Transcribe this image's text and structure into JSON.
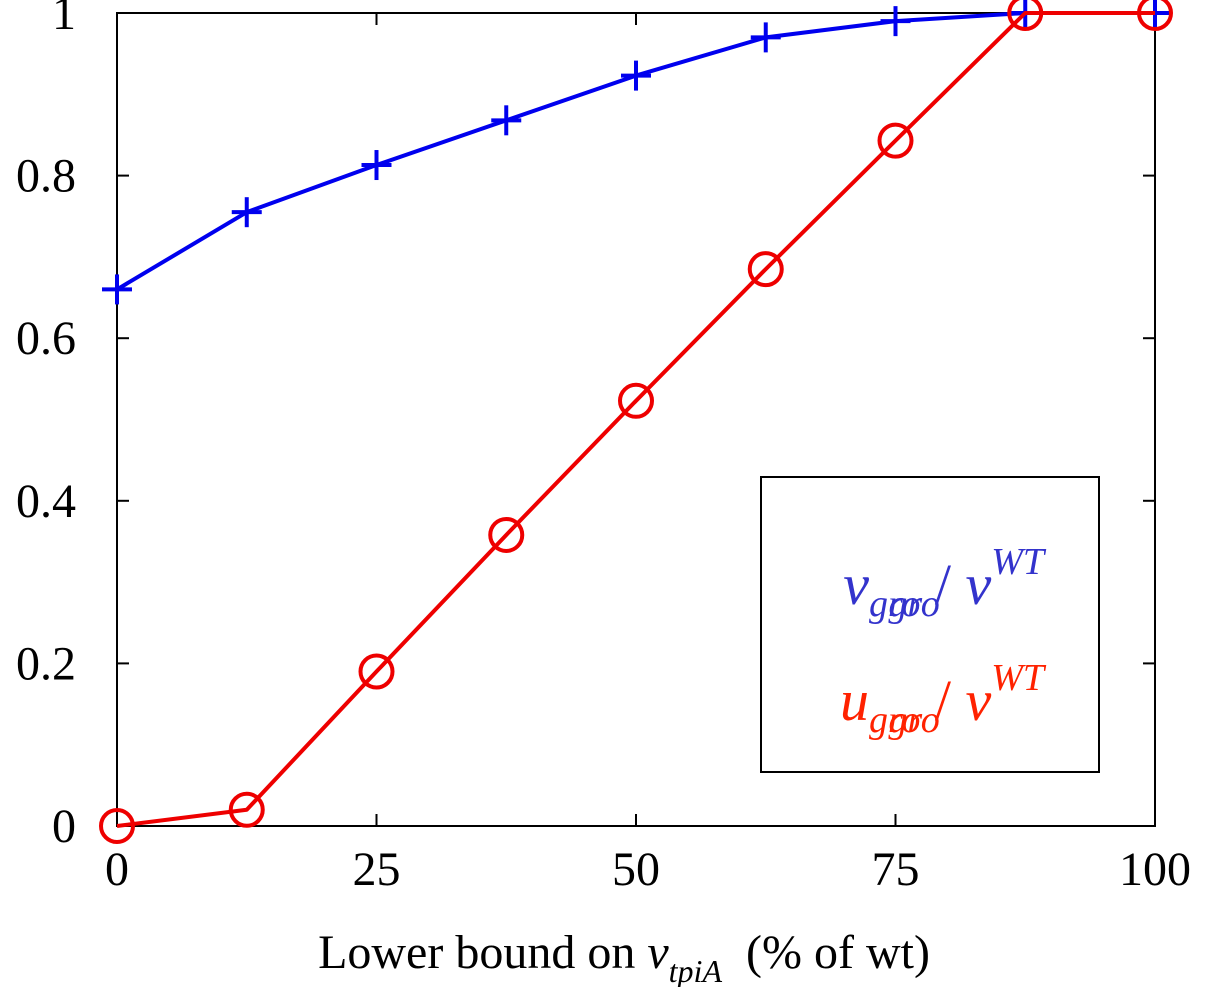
{
  "chart_data": {
    "type": "line",
    "x": [
      0,
      12.5,
      25,
      37.5,
      50,
      62.5,
      75,
      87.5,
      100
    ],
    "series": [
      {
        "name": "v_gro / v_gro^WT",
        "marker": "plus",
        "color": "#0000ee",
        "values": [
          0.66,
          0.755,
          0.813,
          0.868,
          0.923,
          0.97,
          0.99,
          1.0,
          1.0
        ]
      },
      {
        "name": "u_gro / v_gro^WT",
        "marker": "circle",
        "color": "#ee0000",
        "values": [
          0.0,
          0.02,
          0.19,
          0.358,
          0.523,
          0.685,
          0.843,
          1.0,
          1.0
        ]
      }
    ],
    "xlim": [
      0,
      100
    ],
    "ylim": [
      0,
      1.0
    ],
    "xticks": [
      "0",
      "25",
      "50",
      "75",
      "100"
    ],
    "xtick_values": [
      0,
      25,
      50,
      75,
      100
    ],
    "yticks": [
      "0",
      "0.2",
      "0.4",
      "0.6",
      "0.8",
      "1"
    ],
    "ytick_values": [
      0,
      0.2,
      0.4,
      0.6,
      0.8,
      1.0
    ],
    "xlabel": {
      "prefix": "Lower bound on ",
      "var": "v",
      "sub": "tpiA",
      "suffix": "  (% of wt)"
    },
    "legend": {
      "placement": "lower-right",
      "entries": [
        {
          "num_var": "v",
          "num_sub": "gro",
          "slash": " / ",
          "den_var": "v",
          "den_sub": "gro",
          "den_sup": "WT",
          "color": "#3333cc"
        },
        {
          "num_var": "u",
          "num_sub": "gro",
          "slash": " / ",
          "den_var": "v",
          "den_sub": "gro",
          "den_sup": "WT",
          "color": "#ff2200"
        }
      ]
    },
    "grid": false
  }
}
